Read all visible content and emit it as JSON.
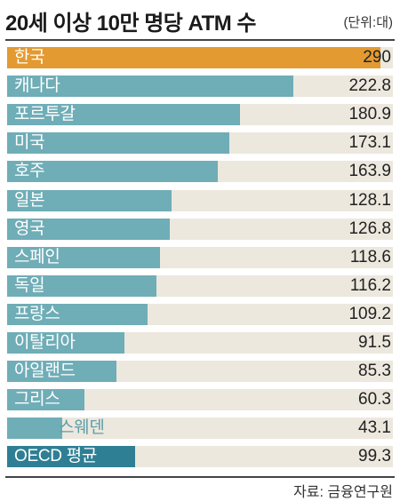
{
  "chart_data": {
    "type": "bar",
    "orientation": "horizontal",
    "title": "20세 이상 10만 명당 ATM 수",
    "unit": "(단위:대)",
    "source": "자료: 금융연구원",
    "xlim": [
      0,
      300
    ],
    "categories": [
      "한국",
      "캐나다",
      "포르투갈",
      "미국",
      "호주",
      "일본",
      "영국",
      "스페인",
      "독일",
      "프랑스",
      "이탈리아",
      "아일랜드",
      "그리스",
      "스웨덴",
      "OECD 평균"
    ],
    "values": [
      290,
      222.8,
      180.9,
      173.1,
      163.9,
      128.1,
      126.8,
      118.6,
      116.2,
      109.2,
      91.5,
      85.3,
      60.3,
      43.1,
      99.3
    ],
    "value_labels": [
      "290",
      "222.8",
      "180.9",
      "173.1",
      "163.9",
      "128.1",
      "126.8",
      "118.6",
      "116.2",
      "109.2",
      "91.5",
      "85.3",
      "60.3",
      "43.1",
      "99.3"
    ],
    "colors": {
      "highlight": "#e39a31",
      "bar": "#6fadb7",
      "average": "#2f7f94",
      "track": "#ece8de"
    },
    "highlight_index": 0,
    "average_index": 14
  }
}
